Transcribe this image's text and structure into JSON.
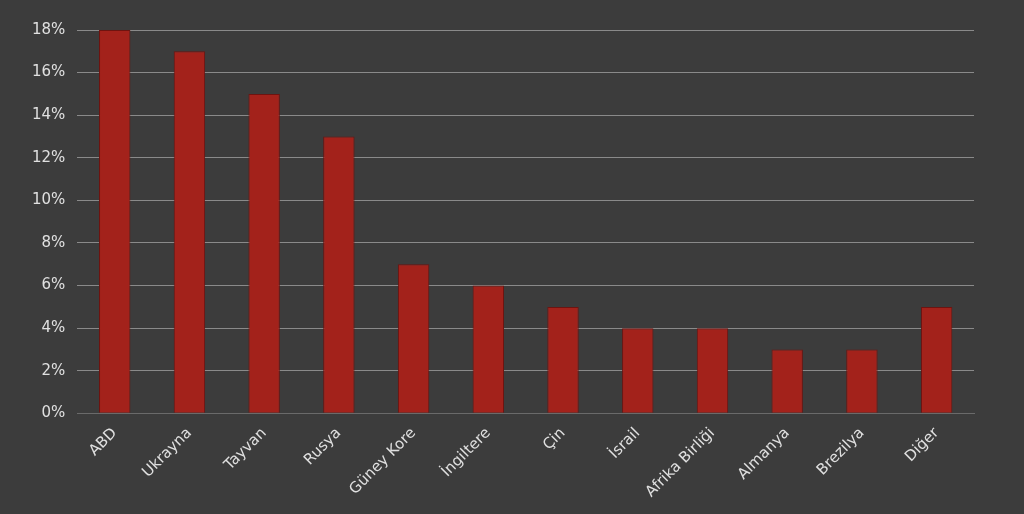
{
  "chart_data": {
    "type": "bar",
    "categories": [
      "ABD",
      "Ukrayna",
      "Tayvan",
      "Rusya",
      "Güney Kore",
      "İngiltere",
      "Çin",
      "İsrail",
      "Afrika Birliği",
      "Almanya",
      "Brezilya",
      "Diğer"
    ],
    "values": [
      18,
      17,
      15,
      13,
      7,
      6,
      5,
      4,
      4,
      3,
      3,
      5
    ],
    "color": "#a3221b",
    "ylim": [
      0,
      18
    ],
    "yticks": [
      {
        "value": 0,
        "label": "0%"
      },
      {
        "value": 2,
        "label": "2%"
      },
      {
        "value": 4,
        "label": "4%"
      },
      {
        "value": 6,
        "label": "6%"
      },
      {
        "value": 8,
        "label": "8%"
      },
      {
        "value": 10,
        "label": "10%"
      },
      {
        "value": 12,
        "label": "12%"
      },
      {
        "value": 14,
        "label": "14%"
      },
      {
        "value": 16,
        "label": "16%"
      },
      {
        "value": 18,
        "label": "18%"
      }
    ],
    "grid": "y",
    "legend": false
  }
}
